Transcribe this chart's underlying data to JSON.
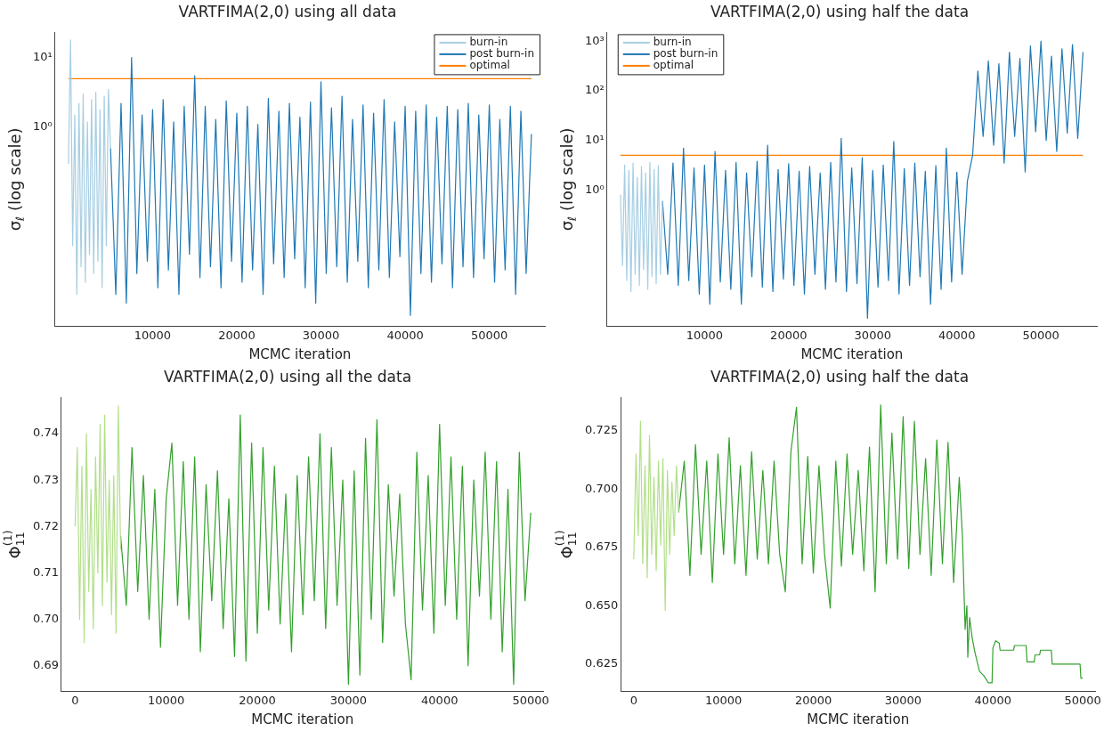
{
  "chart_data": [
    {
      "type": "line",
      "title": "VARTFIMA(2,0) using all data",
      "xlabel": "MCMC iteration",
      "ylabel": "σ$_{ℓ}$ (log scale)",
      "log": "y",
      "legend": "top right",
      "xlim": [
        -1600,
        56600
      ],
      "xticks": [
        10000,
        20000,
        30000,
        40000,
        50000
      ],
      "ylim": [
        0.0014,
        23
      ],
      "yticks": [
        {
          "value": 1,
          "label": "10⁰"
        },
        {
          "value": 10,
          "label": "10¹"
        }
      ],
      "series": [
        {
          "name": "burn-in",
          "color": "#a6cee3",
          "x": [
            0,
            250,
            500,
            750,
            1000,
            1250,
            1500,
            1750,
            2000,
            2250,
            2500,
            2750,
            3000,
            3250,
            3500,
            3750,
            4000,
            4250,
            4500,
            4750,
            5000
          ],
          "values": [
            0.3,
            18,
            0.02,
            1.5,
            0.004,
            2.2,
            0.01,
            3.0,
            0.006,
            1.2,
            0.015,
            2.5,
            0.008,
            3.2,
            0.012,
            1.8,
            0.005,
            2.8,
            0.02,
            3.5,
            0.5
          ]
        },
        {
          "name": "post burn-in",
          "color": "#1f78b4",
          "x": [
            5000,
            5625,
            6250,
            6875,
            7500,
            8125,
            8750,
            9375,
            10000,
            10625,
            11250,
            11875,
            12500,
            13125,
            13750,
            14375,
            15000,
            15625,
            16250,
            16875,
            17500,
            18125,
            18750,
            19375,
            20000,
            20625,
            21250,
            21875,
            22500,
            23125,
            23750,
            24375,
            25000,
            25625,
            26250,
            26875,
            27500,
            28125,
            28750,
            29375,
            30000,
            30625,
            31250,
            31875,
            32500,
            33125,
            33750,
            34375,
            35000,
            35625,
            36250,
            36875,
            37500,
            38125,
            38750,
            39375,
            40000,
            40625,
            41250,
            41875,
            42500,
            43125,
            43750,
            44375,
            45000,
            45625,
            46250,
            46875,
            47500,
            48125,
            48750,
            49375,
            50000,
            50625,
            51250,
            51875,
            52500,
            53125,
            53750,
            54375,
            55000
          ],
          "values": [
            0.5,
            0.004,
            2.2,
            0.003,
            10,
            0.008,
            1.5,
            0.012,
            1.8,
            0.005,
            2.5,
            0.009,
            1.2,
            0.004,
            2.0,
            0.015,
            5.5,
            0.007,
            2.0,
            0.01,
            1.3,
            0.005,
            2.4,
            0.012,
            1.6,
            0.006,
            2.0,
            0.009,
            1.1,
            0.004,
            2.6,
            0.011,
            1.7,
            0.007,
            2.2,
            0.013,
            1.4,
            0.005,
            2.3,
            0.003,
            4.5,
            0.008,
            1.9,
            0.01,
            2.8,
            0.006,
            1.3,
            0.012,
            2.1,
            0.005,
            1.6,
            0.009,
            2.5,
            0.007,
            1.2,
            0.014,
            2.0,
            0.002,
            1.7,
            0.008,
            2.1,
            0.006,
            1.4,
            0.011,
            2.0,
            0.005,
            1.8,
            0.01,
            2.2,
            0.007,
            1.5,
            0.013,
            2.1,
            0.006,
            1.3,
            0.009,
            2.0,
            0.004,
            1.7,
            0.008,
            0.8
          ]
        },
        {
          "name": "optimal",
          "color": "#ff7f00",
          "x": [
            0,
            55000
          ],
          "values": [
            5,
            5
          ]
        }
      ]
    },
    {
      "type": "line",
      "title": "VARTFIMA(2,0) using half the data",
      "xlabel": "MCMC iteration",
      "ylabel": "σ$_{ℓ}$ (log scale)",
      "log": "y",
      "legend": "top left",
      "xlim": [
        -1600,
        56650
      ],
      "xticks": [
        10000,
        20000,
        30000,
        40000,
        50000
      ],
      "ylim": [
        0.0018,
        1500
      ],
      "yticks": [
        {
          "value": 1,
          "label": "10⁰"
        },
        {
          "value": 10,
          "label": "10¹"
        },
        {
          "value": 100,
          "label": "10²"
        },
        {
          "value": 1000,
          "label": "10³"
        }
      ],
      "series": [
        {
          "name": "burn-in",
          "color": "#a6cee3",
          "x": [
            0,
            250,
            500,
            750,
            1000,
            1250,
            1500,
            1750,
            2000,
            2250,
            2500,
            2750,
            3000,
            3250,
            3500,
            3750,
            4000,
            4250,
            4500,
            4750,
            5000
          ],
          "values": [
            0.8,
            0.03,
            3.2,
            0.015,
            2.5,
            0.009,
            3.5,
            0.02,
            1.8,
            0.012,
            3.0,
            0.025,
            2.2,
            0.01,
            3.6,
            0.018,
            2.6,
            0.013,
            3.1,
            0.02,
            0.6
          ]
        },
        {
          "name": "post burn-in",
          "color": "#1f78b4",
          "x": [
            5000,
            5625,
            6250,
            6875,
            7500,
            8125,
            8750,
            9375,
            10000,
            10625,
            11250,
            11875,
            12500,
            13125,
            13750,
            14375,
            15000,
            15625,
            16250,
            16875,
            17500,
            18125,
            18750,
            19375,
            20000,
            20625,
            21250,
            21875,
            22500,
            23125,
            23750,
            24375,
            25000,
            25625,
            26250,
            26875,
            27500,
            28125,
            28750,
            29375,
            30000,
            30625,
            31250,
            31875,
            32500,
            33125,
            33750,
            34375,
            35000,
            35625,
            36250,
            36875,
            37500,
            38125,
            38750,
            39375,
            40000,
            40625,
            41250,
            41875,
            42500,
            43125,
            43750,
            44375,
            45000,
            45625,
            46250,
            46875,
            47500,
            48125,
            48750,
            49375,
            50000,
            50625,
            51250,
            51875,
            52500,
            53125,
            53750,
            54375,
            55000
          ],
          "values": [
            0.6,
            0.02,
            3.5,
            0.012,
            7,
            0.015,
            2.8,
            0.008,
            3.2,
            0.005,
            6,
            0.014,
            2.5,
            0.01,
            3.6,
            0.005,
            2.2,
            0.018,
            3.8,
            0.011,
            8,
            0.009,
            2.6,
            0.016,
            3.4,
            0.012,
            2.4,
            0.008,
            3.0,
            0.02,
            2.2,
            0.01,
            3.6,
            0.014,
            11,
            0.009,
            2.8,
            0.013,
            4.5,
            0.0026,
            2.5,
            0.011,
            3.2,
            0.015,
            9.5,
            0.008,
            2.7,
            0.012,
            3.5,
            0.018,
            2.4,
            0.005,
            3.1,
            0.01,
            7,
            0.014,
            2.3,
            0.02,
            1.5,
            5,
            250,
            12,
            400,
            8,
            350,
            3.5,
            600,
            12,
            450,
            2.3,
            800,
            15,
            1000,
            10,
            500,
            6,
            700,
            14,
            850,
            11,
            600
          ]
        },
        {
          "name": "optimal",
          "color": "#ff7f00",
          "x": [
            0,
            55000
          ],
          "values": [
            5,
            5
          ]
        }
      ]
    },
    {
      "type": "line",
      "title": "VARTFIMA(2,0) using all the data",
      "xlabel": "MCMC iteration",
      "ylabel": "Φ$_{11}$$^{(1)}$",
      "xlim": [
        -1500,
        51400
      ],
      "xticks": [
        0,
        10000,
        20000,
        30000,
        40000,
        50000
      ],
      "ylim": [
        0.6845,
        0.7478
      ],
      "yticks": [
        0.69,
        {
          "value": 0.7,
          "label": "0.70"
        },
        0.71,
        0.72,
        0.73,
        0.74
      ],
      "series": [
        {
          "color": "#b2df8a",
          "x": [
            0,
            250,
            500,
            750,
            1000,
            1250,
            1500,
            1750,
            2000,
            2250,
            2500,
            2750,
            3000,
            3250,
            3500,
            3750,
            4000,
            4250,
            4500,
            4750,
            5000
          ],
          "values": [
            0.72,
            0.737,
            0.7,
            0.733,
            0.695,
            0.74,
            0.706,
            0.728,
            0.698,
            0.735,
            0.71,
            0.742,
            0.703,
            0.744,
            0.708,
            0.73,
            0.701,
            0.731,
            0.697,
            0.746,
            0.715
          ]
        },
        {
          "color": "#33a02c",
          "x": [
            5000,
            5625,
            6250,
            6875,
            7500,
            8125,
            8750,
            9375,
            10000,
            10625,
            11250,
            11875,
            12500,
            13125,
            13750,
            14375,
            15000,
            15625,
            16250,
            16875,
            17500,
            18125,
            18750,
            19375,
            20000,
            20625,
            21250,
            21875,
            22500,
            23125,
            23750,
            24375,
            25000,
            25625,
            26250,
            26875,
            27500,
            28125,
            28750,
            29375,
            30000,
            30625,
            31250,
            31875,
            32500,
            33125,
            33750,
            34375,
            35000,
            35625,
            36250,
            36875,
            37500,
            38125,
            38750,
            39375,
            40000,
            40625,
            41250,
            41875,
            42500,
            43125,
            43750,
            44375,
            45000,
            45625,
            46250,
            46875,
            47500,
            48125,
            48750,
            49375,
            50000
          ],
          "values": [
            0.718,
            0.703,
            0.737,
            0.706,
            0.731,
            0.7,
            0.728,
            0.694,
            0.726,
            0.738,
            0.703,
            0.734,
            0.7,
            0.735,
            0.693,
            0.729,
            0.704,
            0.732,
            0.698,
            0.726,
            0.692,
            0.744,
            0.691,
            0.738,
            0.697,
            0.737,
            0.702,
            0.733,
            0.699,
            0.727,
            0.693,
            0.731,
            0.701,
            0.735,
            0.704,
            0.74,
            0.698,
            0.737,
            0.703,
            0.73,
            0.686,
            0.732,
            0.688,
            0.739,
            0.7,
            0.743,
            0.695,
            0.729,
            0.705,
            0.727,
            0.699,
            0.687,
            0.736,
            0.702,
            0.731,
            0.697,
            0.742,
            0.703,
            0.735,
            0.7,
            0.733,
            0.69,
            0.73,
            0.705,
            0.736,
            0.7,
            0.734,
            0.693,
            0.728,
            0.686,
            0.736,
            0.704,
            0.723
          ]
        }
      ]
    },
    {
      "type": "line",
      "title": "VARTFIMA(2,0) using half the data",
      "xlabel": "MCMC iteration",
      "ylabel": "Φ$_{11}$$^{(1)}$",
      "xlim": [
        -1450,
        51400
      ],
      "xticks": [
        0,
        10000,
        20000,
        30000,
        40000,
        50000
      ],
      "ylim": [
        0.6134,
        0.7392
      ],
      "yticks": [
        0.625,
        {
          "value": 0.65,
          "label": "0.650"
        },
        0.675,
        {
          "value": 0.7,
          "label": "0.700"
        },
        0.725
      ],
      "series": [
        {
          "color": "#b2df8a",
          "x": [
            0,
            250,
            500,
            750,
            1000,
            1250,
            1500,
            1750,
            2000,
            2250,
            2500,
            2750,
            3000,
            3250,
            3500,
            3750,
            4000,
            4250,
            4500,
            4750,
            5000
          ],
          "values": [
            0.67,
            0.715,
            0.68,
            0.729,
            0.668,
            0.71,
            0.662,
            0.723,
            0.672,
            0.705,
            0.665,
            0.712,
            0.676,
            0.713,
            0.648,
            0.708,
            0.672,
            0.703,
            0.68,
            0.71,
            0.69
          ]
        },
        {
          "color": "#33a02c",
          "x": [
            5000,
            5625,
            6250,
            6875,
            7500,
            8125,
            8750,
            9375,
            10000,
            10625,
            11250,
            11875,
            12500,
            13125,
            13750,
            14375,
            15000,
            15625,
            16250,
            16875,
            17500,
            18125,
            18750,
            19375,
            20000,
            20625,
            21250,
            21875,
            22500,
            23125,
            23750,
            24375,
            25000,
            25625,
            26250,
            26875,
            27500,
            28125,
            28750,
            29375,
            30000,
            30625,
            31250,
            31875,
            32500,
            33125,
            33750,
            34375,
            35000,
            35625,
            36250,
            36600,
            36900,
            37100,
            37200,
            37400,
            37700,
            38000,
            38500,
            39000,
            39500,
            39900,
            40000,
            40300,
            40700,
            40800,
            42300,
            42400,
            43700,
            43800,
            44600,
            44700,
            45200,
            45300,
            46500,
            46600,
            49700,
            49800,
            50000
          ],
          "values": [
            0.69,
            0.712,
            0.663,
            0.719,
            0.672,
            0.712,
            0.66,
            0.715,
            0.672,
            0.722,
            0.668,
            0.71,
            0.663,
            0.716,
            0.67,
            0.708,
            0.668,
            0.712,
            0.672,
            0.656,
            0.716,
            0.735,
            0.668,
            0.714,
            0.664,
            0.71,
            0.672,
            0.649,
            0.712,
            0.667,
            0.715,
            0.672,
            0.708,
            0.665,
            0.718,
            0.656,
            0.736,
            0.668,
            0.724,
            0.67,
            0.731,
            0.666,
            0.729,
            0.672,
            0.713,
            0.663,
            0.721,
            0.668,
            0.72,
            0.66,
            0.705,
            0.68,
            0.64,
            0.65,
            0.628,
            0.645,
            0.636,
            0.63,
            0.622,
            0.62,
            0.617,
            0.617,
            0.632,
            0.635,
            0.634,
            0.631,
            0.631,
            0.633,
            0.633,
            0.626,
            0.626,
            0.629,
            0.629,
            0.631,
            0.631,
            0.625,
            0.625,
            0.619,
            0.619
          ]
        }
      ]
    }
  ]
}
